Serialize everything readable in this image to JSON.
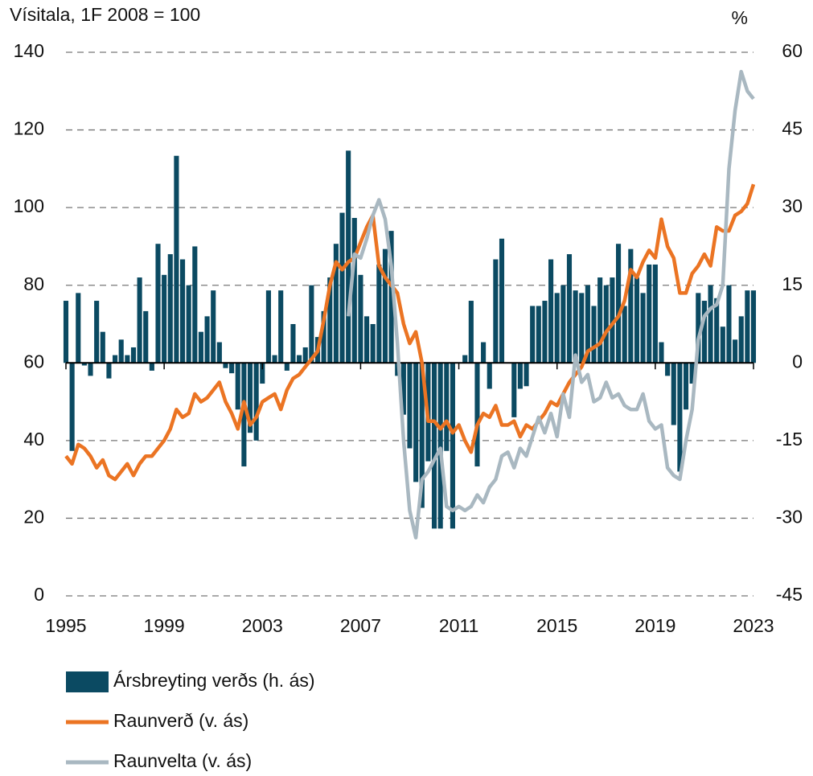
{
  "chart_data": {
    "type": "combo",
    "ylabel": "Vísitala, 1F 2008 = 100",
    "y2label": "%",
    "xlim": [
      1995,
      2023
    ],
    "xticks": [
      1995,
      1999,
      2003,
      2007,
      2011,
      2015,
      2019,
      2023
    ],
    "ylim": [
      0,
      140
    ],
    "yticks": [
      0,
      20,
      40,
      60,
      80,
      100,
      120,
      140
    ],
    "y2lim": [
      -45,
      60
    ],
    "y2ticks": [
      -45,
      -30,
      -15,
      0,
      15,
      30,
      45,
      60
    ],
    "grid": true,
    "legend": "bottom-left",
    "x": [
      1995,
      1995.25,
      1995.5,
      1995.75,
      1996,
      1996.25,
      1996.5,
      1996.75,
      1997,
      1997.25,
      1997.5,
      1997.75,
      1998,
      1998.25,
      1998.5,
      1998.75,
      1999,
      1999.25,
      1999.5,
      1999.75,
      2000,
      2000.25,
      2000.5,
      2000.75,
      2001,
      2001.25,
      2001.5,
      2001.75,
      2002,
      2002.25,
      2002.5,
      2002.75,
      2003,
      2003.25,
      2003.5,
      2003.75,
      2004,
      2004.25,
      2004.5,
      2004.75,
      2005,
      2005.25,
      2005.5,
      2005.75,
      2006,
      2006.25,
      2006.5,
      2006.75,
      2007,
      2007.25,
      2007.5,
      2007.75,
      2008,
      2008.25,
      2008.5,
      2008.75,
      2009,
      2009.25,
      2009.5,
      2009.75,
      2010,
      2010.25,
      2010.5,
      2010.75,
      2011,
      2011.25,
      2011.5,
      2011.75,
      2012,
      2012.25,
      2012.5,
      2012.75,
      2013,
      2013.25,
      2013.5,
      2013.75,
      2014,
      2014.25,
      2014.5,
      2014.75,
      2015,
      2015.25,
      2015.5,
      2015.75,
      2016,
      2016.25,
      2016.5,
      2016.75,
      2017,
      2017.25,
      2017.5,
      2017.75,
      2018,
      2018.25,
      2018.5,
      2018.75,
      2019,
      2019.25,
      2019.5,
      2019.75,
      2020,
      2020.25,
      2020.5,
      2020.75,
      2021,
      2021.25,
      2021.5,
      2021.75,
      2022,
      2022.25,
      2022.5,
      2022.75,
      2023
    ],
    "series": [
      {
        "name": "Ársbreyting verðs (h. ás)",
        "type": "bar",
        "axis": "y2",
        "color": "#0b4a62",
        "values": [
          12,
          -17,
          13.5,
          -0.5,
          -2.5,
          12,
          6,
          -3,
          1.5,
          4.5,
          1.5,
          3,
          16.5,
          10,
          -1.5,
          23,
          17,
          21,
          40,
          20,
          15,
          22.5,
          6,
          9,
          14,
          4,
          -1,
          -2,
          -9,
          -20,
          -13.5,
          -15,
          -4,
          14,
          1.5,
          14,
          -1.5,
          7.5,
          1.5,
          3,
          15,
          5,
          10,
          16.5,
          23,
          29,
          41,
          28,
          17,
          9,
          7.5,
          19,
          22,
          25.5,
          -2.5,
          -10,
          -16.5,
          -23,
          -28,
          -19,
          -32,
          -32,
          -17,
          -32,
          0,
          1.5,
          12,
          -20,
          4,
          -5,
          20,
          24,
          0,
          -10.5,
          -5,
          -4.5,
          11,
          11,
          12,
          20,
          13.5,
          15,
          21,
          14,
          13.5,
          15,
          11,
          16.5,
          15,
          16.5,
          23,
          11,
          22,
          16.5,
          13.5,
          19,
          19,
          4,
          -2.5,
          -12,
          -21,
          -9,
          -4,
          13.5,
          12,
          15,
          12.5,
          7,
          15,
          4.5,
          9,
          14,
          14
        ]
      },
      {
        "name": "Raunverð (v. ás)",
        "type": "line",
        "color": "#eb7423",
        "values": [
          36,
          34,
          39,
          38,
          36,
          33,
          35,
          31,
          30,
          32,
          34,
          31,
          34,
          36,
          36,
          38,
          40,
          43,
          48,
          46,
          47,
          52,
          50,
          51,
          53,
          55,
          50,
          47,
          43,
          50,
          44,
          46,
          50,
          51,
          52,
          48,
          53,
          56,
          57,
          59,
          61,
          63,
          71,
          80,
          86,
          84,
          86,
          87,
          91,
          95,
          98,
          85,
          82,
          80,
          78,
          70,
          65,
          68,
          60,
          45,
          45,
          43,
          45,
          42,
          44,
          40,
          37,
          44,
          47,
          46,
          49,
          44,
          44,
          45,
          41,
          44,
          43,
          45,
          47,
          50,
          49,
          52,
          55,
          57,
          59,
          63,
          64,
          65,
          68,
          70,
          72,
          76,
          84,
          82,
          86,
          89,
          87,
          97,
          90,
          87,
          78,
          78,
          83,
          85,
          88,
          85,
          95,
          94,
          94,
          98,
          99,
          101,
          106
        ]
      },
      {
        "name": "Raunvelta (v. ás)",
        "type": "line",
        "color": "#a9b8c1",
        "values": [
          null,
          null,
          null,
          null,
          null,
          null,
          null,
          null,
          null,
          null,
          null,
          null,
          null,
          null,
          null,
          null,
          null,
          null,
          null,
          null,
          null,
          null,
          null,
          null,
          null,
          null,
          null,
          null,
          null,
          null,
          null,
          null,
          null,
          null,
          null,
          null,
          null,
          null,
          null,
          null,
          null,
          null,
          null,
          null,
          null,
          null,
          72,
          88,
          87,
          92,
          98,
          102,
          97,
          85,
          65,
          40,
          22,
          15,
          30,
          32,
          35,
          38,
          23,
          22,
          23,
          22,
          23,
          26,
          24,
          28,
          30,
          36,
          37,
          33,
          38,
          36,
          41,
          46,
          42,
          47,
          41,
          52,
          46,
          62,
          55,
          57,
          50,
          51,
          55,
          51,
          52,
          49,
          48,
          48,
          52,
          45,
          43,
          44,
          33,
          31,
          30,
          40,
          48,
          66,
          72,
          74,
          75,
          80,
          110,
          125,
          135,
          130,
          128
        ]
      }
    ]
  }
}
